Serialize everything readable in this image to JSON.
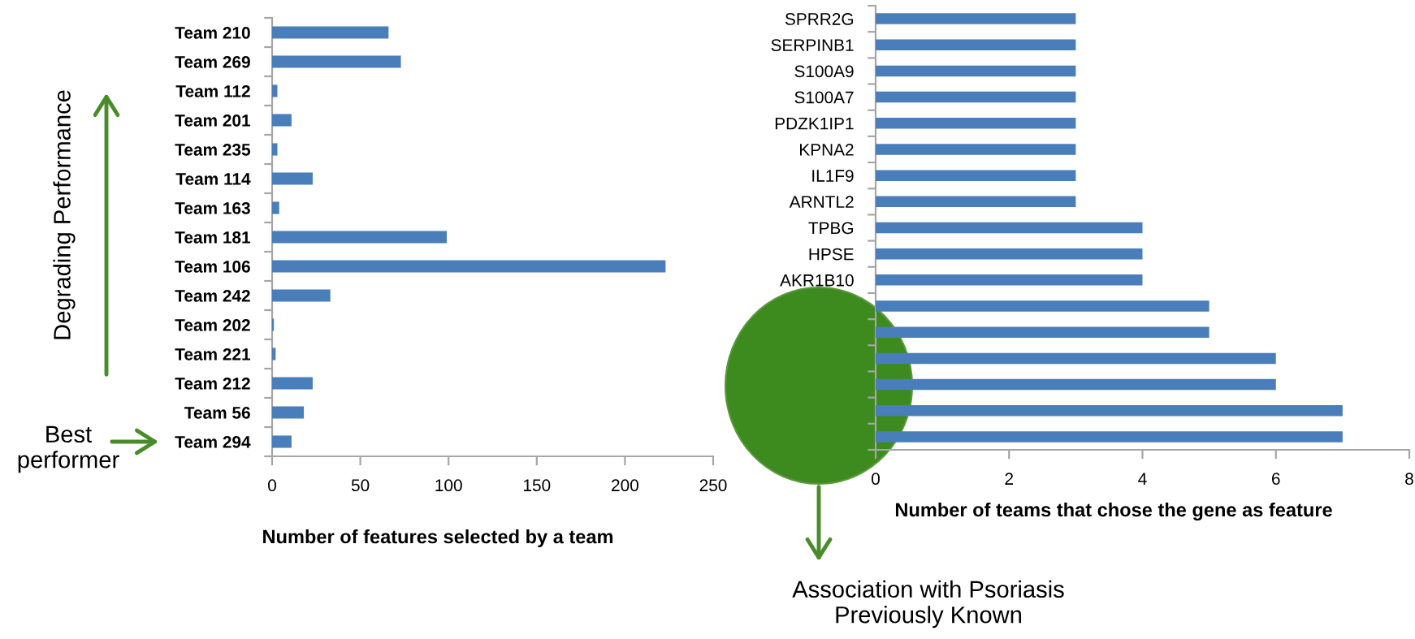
{
  "chart_data": [
    {
      "type": "bar",
      "orientation": "horizontal",
      "categories": [
        "Team 210",
        "Team 269",
        "Team 112",
        "Team 201",
        "Team 235",
        "Team 114",
        "Team 163",
        "Team 181",
        "Team 106",
        "Team 242",
        "Team 202",
        "Team 221",
        "Team 212",
        "Team 56",
        "Team 294"
      ],
      "values": [
        66,
        73,
        3,
        11,
        3,
        23,
        4,
        99,
        223,
        33,
        1,
        2,
        23,
        18,
        11
      ],
      "color": "#4a7ebb",
      "xlim": [
        0,
        250
      ],
      "xticks": [
        0,
        50,
        100,
        150,
        200,
        250
      ],
      "xlabel": "Number of features selected by a team",
      "annotations": [
        "Degrading Performance",
        "Best\nperformer"
      ]
    },
    {
      "type": "bar",
      "orientation": "horizontal",
      "categories": [
        "SPRR2G",
        "SERPINB1",
        "S100A9",
        "S100A7",
        "PDZK1IP1",
        "KPNA2",
        "IL1F9",
        "ARNTL2",
        "TPBG",
        "HPSE",
        "AKR1B10",
        null,
        null,
        null,
        null,
        null,
        null
      ],
      "values": [
        3,
        3,
        3,
        3,
        3,
        3,
        3,
        3,
        4,
        4,
        4,
        5,
        5,
        6,
        6,
        7,
        7
      ],
      "color": "#4a7ebb",
      "xlim": [
        0,
        8
      ],
      "xticks": [
        0,
        2,
        4,
        6,
        8
      ],
      "xlabel": "Number of teams that chose the gene as feature",
      "annotations": [
        "Association with Psoriasis\nPreviously Known"
      ]
    }
  ]
}
